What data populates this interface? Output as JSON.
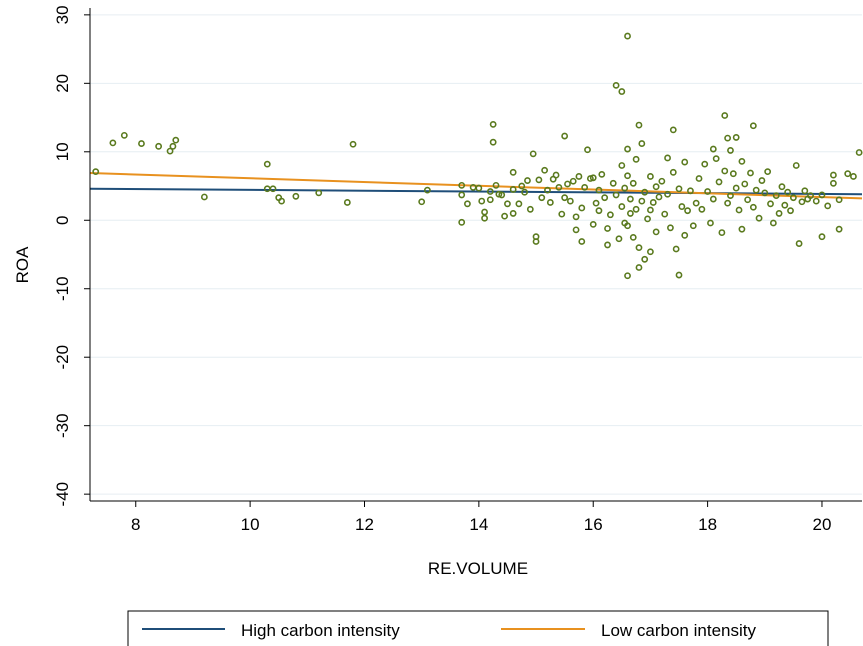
{
  "chart_data": {
    "type": "scatter",
    "xlabel": "RE.VOLUME",
    "ylabel": "ROA",
    "xlim": [
      7.2,
      20.7
    ],
    "ylim": [
      -41,
      31
    ],
    "xticks": [
      8,
      10,
      12,
      14,
      16,
      18,
      20
    ],
    "yticks": [
      -40,
      -30,
      -20,
      -10,
      0,
      10,
      20,
      30
    ],
    "grid": true,
    "legend_position": "bottom",
    "colors": {
      "points": "#5a7a1e",
      "high_carbon_line": "#1f4e79",
      "low_carbon_line": "#e8911f",
      "grid": "#e6eef2"
    },
    "series": [
      {
        "name": "High carbon intensity",
        "kind": "line",
        "x": [
          7.2,
          20.7
        ],
        "y": [
          4.6,
          3.8
        ]
      },
      {
        "name": "Low carbon intensity",
        "kind": "line",
        "x": [
          7.2,
          20.7
        ],
        "y": [
          6.9,
          3.2
        ]
      },
      {
        "kind": "scatter",
        "points": [
          [
            7.3,
            7.1
          ],
          [
            7.6,
            11.3
          ],
          [
            7.8,
            12.4
          ],
          [
            8.1,
            11.2
          ],
          [
            8.4,
            10.8
          ],
          [
            8.6,
            10.1
          ],
          [
            8.65,
            10.8
          ],
          [
            8.7,
            11.7
          ],
          [
            9.2,
            3.4
          ],
          [
            10.3,
            8.2
          ],
          [
            10.3,
            4.6
          ],
          [
            10.4,
            4.6
          ],
          [
            10.5,
            3.3
          ],
          [
            10.55,
            2.8
          ],
          [
            10.8,
            3.5
          ],
          [
            11.2,
            4.0
          ],
          [
            11.7,
            2.6
          ],
          [
            11.8,
            11.1
          ],
          [
            13.0,
            2.7
          ],
          [
            13.1,
            4.4
          ],
          [
            13.7,
            -0.3
          ],
          [
            13.7,
            5.1
          ],
          [
            13.7,
            3.7
          ],
          [
            13.8,
            2.4
          ],
          [
            13.9,
            4.8
          ],
          [
            14.0,
            4.7
          ],
          [
            14.05,
            2.8
          ],
          [
            14.1,
            1.2
          ],
          [
            14.1,
            0.3
          ],
          [
            14.2,
            4.2
          ],
          [
            14.2,
            3.0
          ],
          [
            14.25,
            14.0
          ],
          [
            14.25,
            11.4
          ],
          [
            14.3,
            5.1
          ],
          [
            14.35,
            3.8
          ],
          [
            14.4,
            3.7
          ],
          [
            14.45,
            0.6
          ],
          [
            14.5,
            2.4
          ],
          [
            14.6,
            4.5
          ],
          [
            14.6,
            1.0
          ],
          [
            14.6,
            7.0
          ],
          [
            14.7,
            2.4
          ],
          [
            14.75,
            5.0
          ],
          [
            14.8,
            4.1
          ],
          [
            14.85,
            5.8
          ],
          [
            14.9,
            1.6
          ],
          [
            14.95,
            9.7
          ],
          [
            15.0,
            -2.4
          ],
          [
            15.0,
            -3.1
          ],
          [
            15.05,
            5.9
          ],
          [
            15.1,
            3.3
          ],
          [
            15.15,
            7.3
          ],
          [
            15.2,
            4.4
          ],
          [
            15.25,
            2.6
          ],
          [
            15.3,
            6.0
          ],
          [
            15.35,
            6.6
          ],
          [
            15.4,
            4.8
          ],
          [
            15.45,
            0.9
          ],
          [
            15.5,
            3.3
          ],
          [
            15.5,
            12.3
          ],
          [
            15.55,
            5.3
          ],
          [
            15.6,
            2.8
          ],
          [
            15.65,
            5.7
          ],
          [
            15.7,
            0.5
          ],
          [
            15.7,
            -1.4
          ],
          [
            15.75,
            6.4
          ],
          [
            15.8,
            -3.1
          ],
          [
            15.8,
            1.8
          ],
          [
            15.85,
            4.8
          ],
          [
            15.9,
            10.3
          ],
          [
            15.95,
            6.1
          ],
          [
            16.0,
            6.2
          ],
          [
            16.0,
            -0.6
          ],
          [
            16.05,
            2.5
          ],
          [
            16.1,
            4.4
          ],
          [
            16.1,
            1.4
          ],
          [
            16.15,
            6.7
          ],
          [
            16.2,
            3.3
          ],
          [
            16.25,
            -3.6
          ],
          [
            16.25,
            -1.2
          ],
          [
            16.3,
            0.8
          ],
          [
            16.35,
            5.4
          ],
          [
            16.4,
            3.7
          ],
          [
            16.4,
            19.7
          ],
          [
            16.45,
            -2.7
          ],
          [
            16.5,
            18.8
          ],
          [
            16.5,
            8.0
          ],
          [
            16.5,
            2.0
          ],
          [
            16.55,
            -0.4
          ],
          [
            16.55,
            4.7
          ],
          [
            16.6,
            26.9
          ],
          [
            16.6,
            10.4
          ],
          [
            16.6,
            6.5
          ],
          [
            16.6,
            -0.8
          ],
          [
            16.6,
            -8.1
          ],
          [
            16.65,
            3.1
          ],
          [
            16.65,
            1.0
          ],
          [
            16.7,
            -2.5
          ],
          [
            16.7,
            5.4
          ],
          [
            16.75,
            8.9
          ],
          [
            16.75,
            1.6
          ],
          [
            16.8,
            13.9
          ],
          [
            16.8,
            -4.0
          ],
          [
            16.8,
            -6.9
          ],
          [
            16.85,
            11.2
          ],
          [
            16.85,
            2.8
          ],
          [
            16.9,
            -5.7
          ],
          [
            16.9,
            4.1
          ],
          [
            16.95,
            0.2
          ],
          [
            17.0,
            6.4
          ],
          [
            17.0,
            -4.6
          ],
          [
            17.0,
            1.5
          ],
          [
            17.05,
            2.6
          ],
          [
            17.1,
            -1.7
          ],
          [
            17.1,
            4.9
          ],
          [
            17.15,
            3.4
          ],
          [
            17.2,
            5.7
          ],
          [
            17.25,
            0.9
          ],
          [
            17.3,
            9.1
          ],
          [
            17.3,
            3.8
          ],
          [
            17.35,
            -1.1
          ],
          [
            17.4,
            7.0
          ],
          [
            17.4,
            13.2
          ],
          [
            17.45,
            -4.2
          ],
          [
            17.5,
            -8.0
          ],
          [
            17.5,
            4.6
          ],
          [
            17.55,
            2.0
          ],
          [
            17.6,
            -2.2
          ],
          [
            17.6,
            8.5
          ],
          [
            17.65,
            1.4
          ],
          [
            17.7,
            4.3
          ],
          [
            17.75,
            -0.8
          ],
          [
            17.8,
            2.5
          ],
          [
            17.85,
            6.1
          ],
          [
            17.9,
            1.6
          ],
          [
            17.95,
            8.2
          ],
          [
            18.0,
            4.2
          ],
          [
            18.05,
            -0.4
          ],
          [
            18.1,
            10.4
          ],
          [
            18.1,
            3.1
          ],
          [
            18.15,
            9.0
          ],
          [
            18.2,
            5.6
          ],
          [
            18.25,
            -1.8
          ],
          [
            18.3,
            15.3
          ],
          [
            18.3,
            7.2
          ],
          [
            18.35,
            12.0
          ],
          [
            18.35,
            2.5
          ],
          [
            18.4,
            3.6
          ],
          [
            18.4,
            10.2
          ],
          [
            18.45,
            6.8
          ],
          [
            18.5,
            12.1
          ],
          [
            18.5,
            4.7
          ],
          [
            18.55,
            1.5
          ],
          [
            18.6,
            8.6
          ],
          [
            18.6,
            -1.3
          ],
          [
            18.65,
            5.3
          ],
          [
            18.7,
            3.0
          ],
          [
            18.75,
            6.9
          ],
          [
            18.8,
            13.8
          ],
          [
            18.8,
            1.9
          ],
          [
            18.85,
            4.4
          ],
          [
            18.9,
            0.3
          ],
          [
            18.95,
            5.8
          ],
          [
            19.0,
            4.0
          ],
          [
            19.05,
            7.1
          ],
          [
            19.1,
            2.4
          ],
          [
            19.15,
            -0.4
          ],
          [
            19.2,
            3.6
          ],
          [
            19.25,
            1.0
          ],
          [
            19.3,
            4.9
          ],
          [
            19.35,
            2.2
          ],
          [
            19.4,
            4.1
          ],
          [
            19.45,
            1.4
          ],
          [
            19.5,
            3.3
          ],
          [
            19.55,
            8.0
          ],
          [
            19.6,
            -3.4
          ],
          [
            19.65,
            2.7
          ],
          [
            19.7,
            4.3
          ],
          [
            19.75,
            3.1
          ],
          [
            19.8,
            3.6
          ],
          [
            19.9,
            2.8
          ],
          [
            20.0,
            -2.4
          ],
          [
            20.0,
            3.7
          ],
          [
            20.1,
            2.1
          ],
          [
            20.2,
            5.4
          ],
          [
            20.2,
            6.6
          ],
          [
            20.3,
            3.0
          ],
          [
            20.3,
            -1.3
          ],
          [
            20.45,
            6.8
          ],
          [
            20.55,
            6.4
          ],
          [
            20.65,
            9.9
          ]
        ]
      }
    ]
  }
}
